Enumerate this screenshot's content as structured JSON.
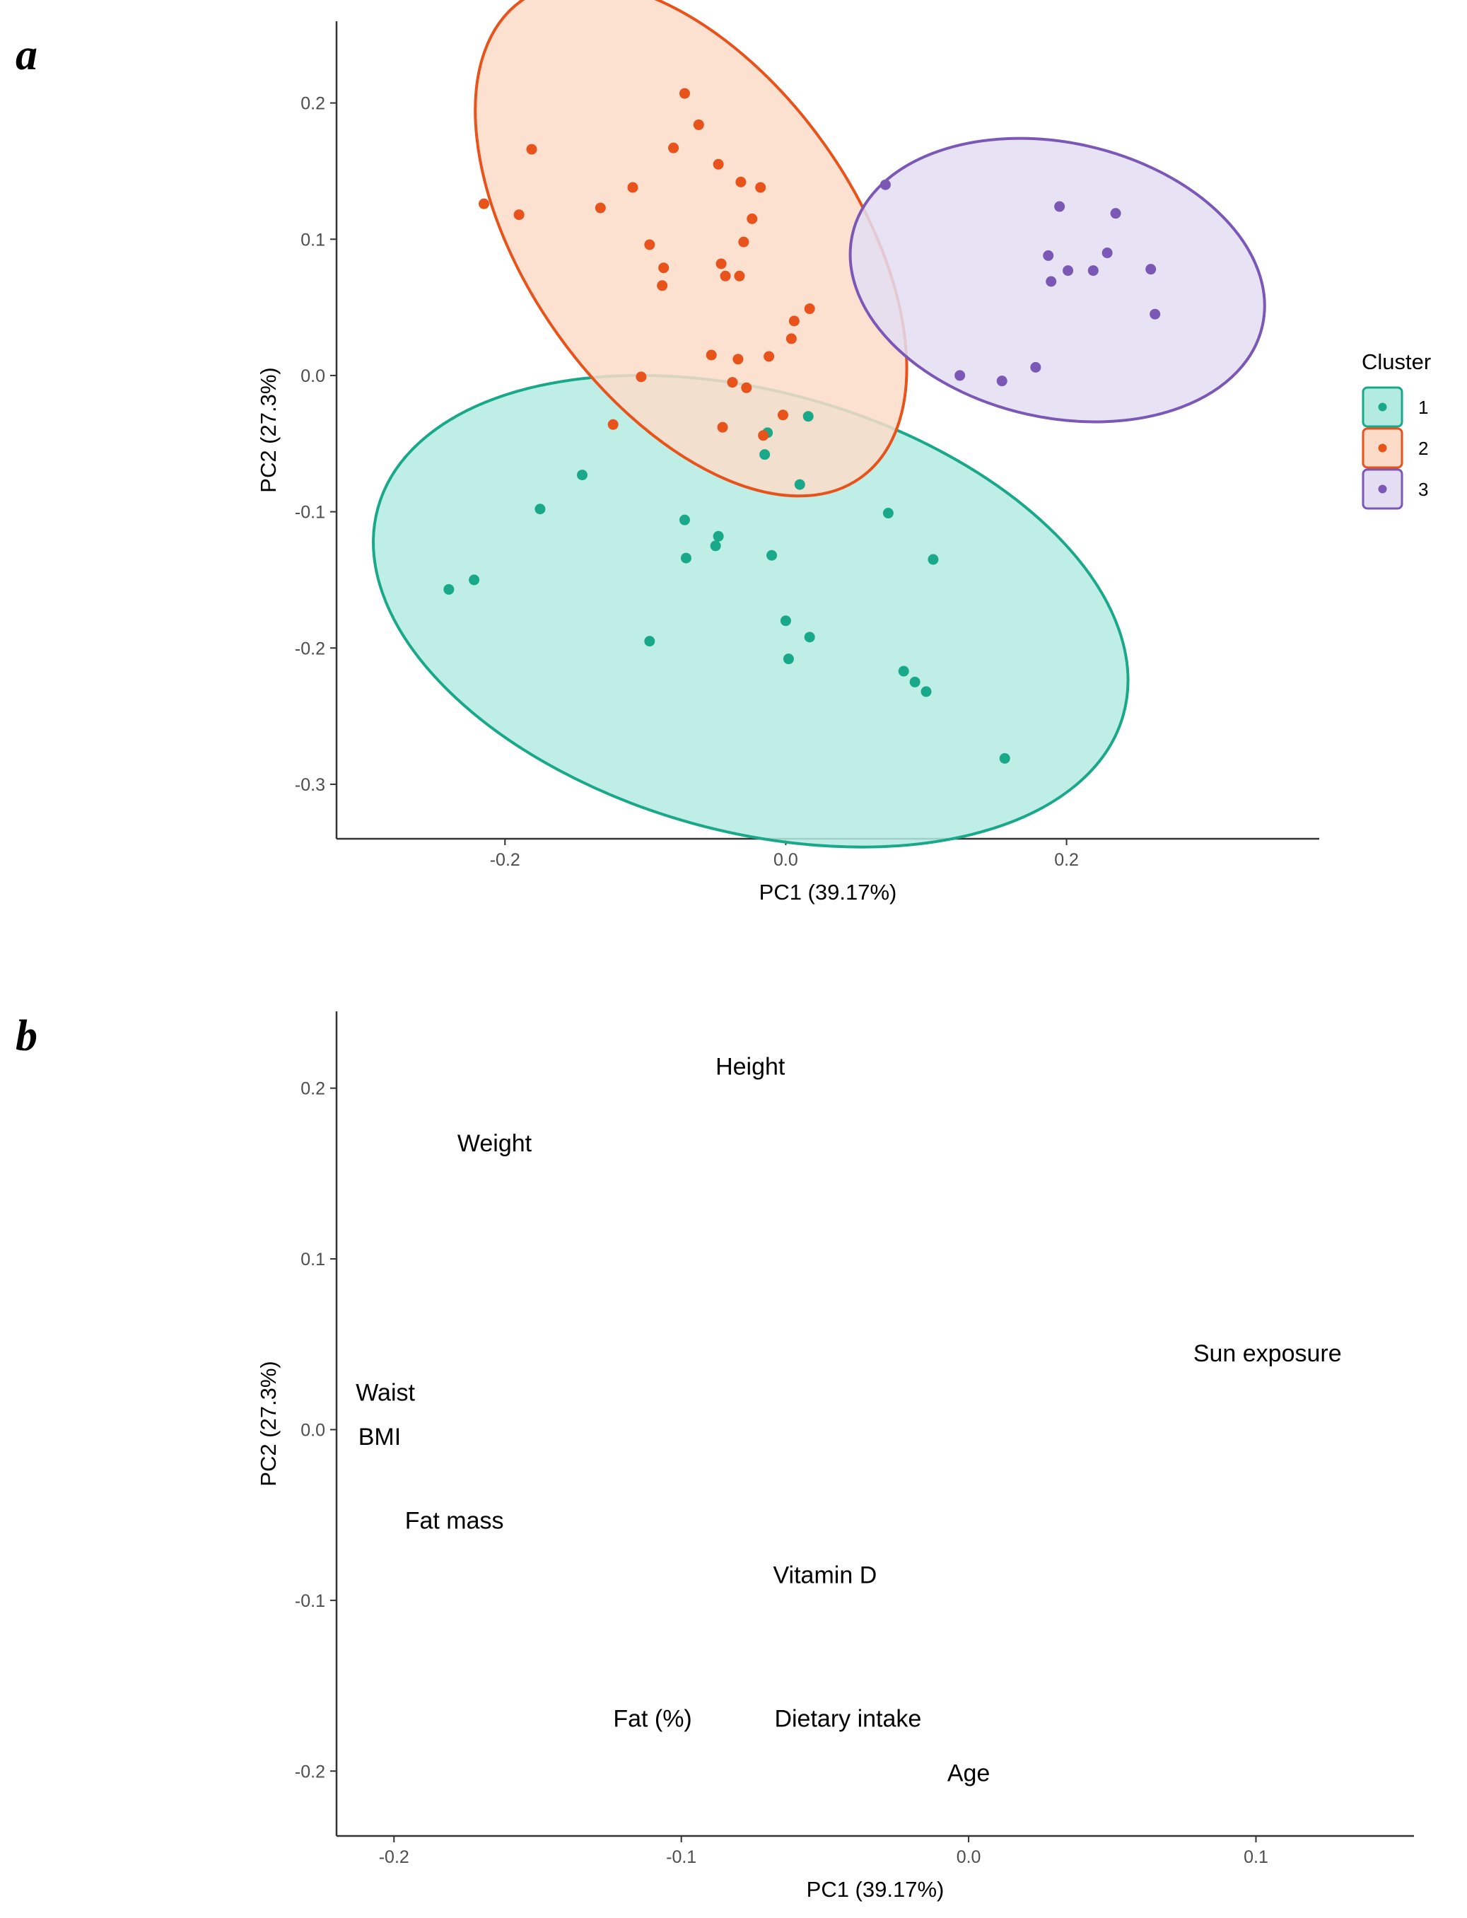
{
  "figure": {
    "panel_a_label": "a",
    "panel_b_label": "b"
  },
  "chart_data": [
    {
      "type": "scatter",
      "panel": "a",
      "title": "",
      "xlabel": "PC1 (39.17%)",
      "ylabel": "PC2 (27.3%)",
      "xlim": [
        -0.32,
        0.38
      ],
      "ylim": [
        -0.34,
        0.26
      ],
      "xticks": [
        -0.2,
        0.0,
        0.2
      ],
      "xtick_labels": [
        "-0.2",
        "0.0",
        "0.2"
      ],
      "yticks": [
        -0.3,
        -0.2,
        -0.1,
        0.0,
        0.1,
        0.2
      ],
      "ytick_labels": [
        "-0.3",
        "-0.2",
        "-0.1",
        "0.0",
        "0.1",
        "0.2"
      ],
      "grid": false,
      "legend": {
        "title": "Cluster",
        "position": "right"
      },
      "series": [
        {
          "name": "1",
          "color": "#1aa88a",
          "fill": "#b3ebe1",
          "ellipse": {
            "cx": -0.025,
            "cy": -0.173,
            "rx": 0.2755,
            "ry": 0.1614,
            "angle_deg": 15.5
          },
          "points": [
            [
              -0.24,
              -0.157
            ],
            [
              -0.222,
              -0.15
            ],
            [
              -0.175,
              -0.098
            ],
            [
              -0.145,
              -0.073
            ],
            [
              -0.097,
              -0.195
            ],
            [
              -0.072,
              -0.106
            ],
            [
              -0.071,
              -0.134
            ],
            [
              -0.05,
              -0.125
            ],
            [
              -0.048,
              -0.118
            ],
            [
              -0.013,
              -0.042
            ],
            [
              -0.015,
              -0.058
            ],
            [
              -0.01,
              -0.132
            ],
            [
              0.0,
              -0.18
            ],
            [
              0.002,
              -0.208
            ],
            [
              0.01,
              -0.08
            ],
            [
              0.016,
              -0.03
            ],
            [
              0.017,
              -0.192
            ],
            [
              0.073,
              -0.101
            ],
            [
              0.084,
              -0.217
            ],
            [
              0.092,
              -0.225
            ],
            [
              0.1,
              -0.232
            ],
            [
              0.105,
              -0.135
            ],
            [
              0.156,
              -0.281
            ]
          ]
        },
        {
          "name": "2",
          "color": "#e8521b",
          "fill": "#fcdcc9",
          "ellipse": {
            "cx": -0.0675,
            "cy": 0.1,
            "rx": 0.2084,
            "ry": 0.1202,
            "angle_deg": 54.6
          },
          "points": [
            [
              -0.215,
              0.126
            ],
            [
              -0.19,
              0.118
            ],
            [
              -0.181,
              0.166
            ],
            [
              -0.132,
              0.123
            ],
            [
              -0.123,
              -0.036
            ],
            [
              -0.109,
              0.138
            ],
            [
              -0.103,
              -0.001
            ],
            [
              -0.097,
              0.096
            ],
            [
              -0.088,
              0.066
            ],
            [
              -0.087,
              0.079
            ],
            [
              -0.08,
              0.167
            ],
            [
              -0.072,
              0.207
            ],
            [
              -0.062,
              0.184
            ],
            [
              -0.053,
              0.015
            ],
            [
              -0.048,
              0.155
            ],
            [
              -0.046,
              0.082
            ],
            [
              -0.045,
              -0.038
            ],
            [
              -0.043,
              0.073
            ],
            [
              -0.038,
              -0.005
            ],
            [
              -0.034,
              0.012
            ],
            [
              -0.033,
              0.073
            ],
            [
              -0.032,
              0.142
            ],
            [
              -0.03,
              0.098
            ],
            [
              -0.028,
              -0.009
            ],
            [
              -0.024,
              0.115
            ],
            [
              -0.018,
              0.138
            ],
            [
              -0.016,
              -0.044
            ],
            [
              -0.012,
              0.014
            ],
            [
              -0.002,
              -0.029
            ],
            [
              0.004,
              0.027
            ],
            [
              0.006,
              0.04
            ],
            [
              0.017,
              0.049
            ]
          ]
        },
        {
          "name": "3",
          "color": "#7b57b6",
          "fill": "#e3def2",
          "ellipse": {
            "cx": 0.1935,
            "cy": 0.07,
            "rx": 0.1496,
            "ry": 0.1009,
            "angle_deg": 12.5
          },
          "points": [
            [
              0.071,
              0.14
            ],
            [
              0.124,
              0.0
            ],
            [
              0.154,
              -0.004
            ],
            [
              0.178,
              0.006
            ],
            [
              0.187,
              0.088
            ],
            [
              0.189,
              0.069
            ],
            [
              0.195,
              0.124
            ],
            [
              0.201,
              0.077
            ],
            [
              0.219,
              0.077
            ],
            [
              0.229,
              0.09
            ],
            [
              0.235,
              0.119
            ],
            [
              0.26,
              0.078
            ],
            [
              0.263,
              0.045
            ]
          ]
        }
      ]
    },
    {
      "type": "scatter",
      "panel": "b",
      "title": "",
      "xlabel": "PC1 (39.17%)",
      "ylabel": "PC2 (27.3%)",
      "xlim": [
        -0.22,
        0.155
      ],
      "ylim": [
        -0.238,
        0.245
      ],
      "xticks": [
        -0.2,
        -0.1,
        0.0,
        0.1
      ],
      "xtick_labels": [
        "-0.2",
        "-0.1",
        "0.0",
        "0.1"
      ],
      "yticks": [
        -0.2,
        -0.1,
        0.0,
        0.1,
        0.2
      ],
      "ytick_labels": [
        "-0.2",
        "-0.1",
        "0.0",
        "0.1",
        "0.2"
      ],
      "grid": false,
      "labels": [
        {
          "text": "Height",
          "x": -0.076,
          "y": 0.213
        },
        {
          "text": "Weight",
          "x": -0.165,
          "y": 0.168
        },
        {
          "text": "Sun exposure",
          "x": 0.104,
          "y": 0.045
        },
        {
          "text": "Waist",
          "x": -0.203,
          "y": 0.022
        },
        {
          "text": "BMI",
          "x": -0.205,
          "y": -0.004
        },
        {
          "text": "Fat mass",
          "x": -0.179,
          "y": -0.053
        },
        {
          "text": "Vitamin D",
          "x": -0.05,
          "y": -0.085
        },
        {
          "text": "Fat (%)",
          "x": -0.11,
          "y": -0.169
        },
        {
          "text": "Dietary intake",
          "x": -0.042,
          "y": -0.169
        },
        {
          "text": "Age",
          "x": 0.0,
          "y": -0.201
        }
      ]
    }
  ]
}
